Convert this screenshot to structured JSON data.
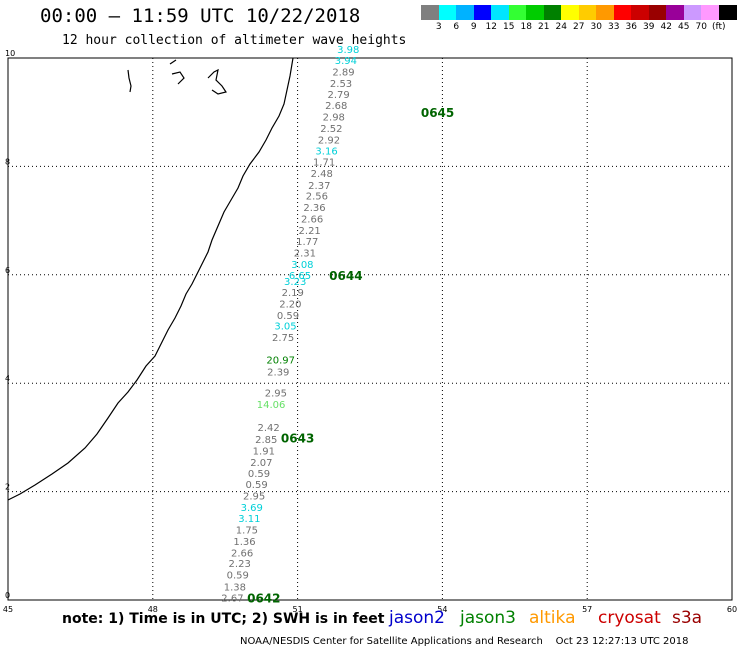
{
  "header": {
    "title": "00:00 – 11:59 UTC 10/22/2018",
    "subtitle": "12 hour collection of altimeter wave heights"
  },
  "colorbar": {
    "colors": [
      "#7f7f7f",
      "#00ffff",
      "#00b2ff",
      "#0000ff",
      "#00e5ff",
      "#33ff33",
      "#00cc00",
      "#008000",
      "#ffff00",
      "#ffcc00",
      "#ff9900",
      "#ff0000",
      "#cc0000",
      "#990000",
      "#990099",
      "#cc99ff",
      "#ff99ff",
      "#000000"
    ],
    "labels": [
      "3",
      "6",
      "9",
      "12",
      "15",
      "18",
      "21",
      "24",
      "27",
      "30",
      "33",
      "36",
      "39",
      "42",
      "45",
      "70",
      "(ft)"
    ]
  },
  "map": {
    "x_labels": [
      "45",
      "48",
      "51",
      "54",
      "57",
      "60"
    ],
    "y_labels": [
      "0",
      "2",
      "4",
      "6",
      "8",
      "10"
    ],
    "x_range": [
      45,
      60
    ],
    "y_range": [
      0,
      10
    ],
    "pass_labels": [
      {
        "label": "0642",
        "lon": 50.3,
        "lat": 0.05,
        "color": "#006400"
      },
      {
        "label": "0643",
        "lon": 51.0,
        "lat": 3.0,
        "color": "#006400"
      },
      {
        "label": "0644",
        "lon": 52.0,
        "lat": 6.0,
        "color": "#006400"
      },
      {
        "label": "0645",
        "lon": 53.9,
        "lat": 9.0,
        "color": "#006400"
      }
    ],
    "wave_heights": [
      {
        "v": "2.67",
        "lon": 49.65,
        "lat": 0.05,
        "c": "#707070"
      },
      {
        "v": "1.38",
        "lon": 49.7,
        "lat": 0.25,
        "c": "#707070"
      },
      {
        "v": "0.59",
        "lon": 49.76,
        "lat": 0.47,
        "c": "#707070"
      },
      {
        "v": "2.23",
        "lon": 49.8,
        "lat": 0.68,
        "c": "#707070"
      },
      {
        "v": "2.66",
        "lon": 49.85,
        "lat": 0.88,
        "c": "#707070"
      },
      {
        "v": "1.36",
        "lon": 49.9,
        "lat": 1.09,
        "c": "#707070"
      },
      {
        "v": "1.75",
        "lon": 49.95,
        "lat": 1.3,
        "c": "#707070"
      },
      {
        "v": "3.11",
        "lon": 50.0,
        "lat": 1.51,
        "c": "#00d0d8"
      },
      {
        "v": "3.69",
        "lon": 50.05,
        "lat": 1.72,
        "c": "#00d0d8"
      },
      {
        "v": "2.95",
        "lon": 50.1,
        "lat": 1.93,
        "c": "#707070"
      },
      {
        "v": "0.59",
        "lon": 50.15,
        "lat": 2.14,
        "c": "#707070"
      },
      {
        "v": "0.59",
        "lon": 50.2,
        "lat": 2.34,
        "c": "#707070"
      },
      {
        "v": "2.07",
        "lon": 50.25,
        "lat": 2.55,
        "c": "#707070"
      },
      {
        "v": "1.91",
        "lon": 50.3,
        "lat": 2.76,
        "c": "#707070"
      },
      {
        "v": "2.85",
        "lon": 50.35,
        "lat": 2.97,
        "c": "#707070"
      },
      {
        "v": "2.42",
        "lon": 50.4,
        "lat": 3.19,
        "c": "#707070"
      },
      {
        "v": "14.06",
        "lon": 50.45,
        "lat": 3.62,
        "c": "#66e066"
      },
      {
        "v": "2.95",
        "lon": 50.55,
        "lat": 3.83,
        "c": "#707070"
      },
      {
        "v": "2.39",
        "lon": 50.6,
        "lat": 4.22,
        "c": "#707070"
      },
      {
        "v": "20.97",
        "lon": 50.65,
        "lat": 4.44,
        "c": "#008000"
      },
      {
        "v": "2.75",
        "lon": 50.7,
        "lat": 4.85,
        "c": "#707070"
      },
      {
        "v": "3.05",
        "lon": 50.75,
        "lat": 5.06,
        "c": "#00d0d8"
      },
      {
        "v": "0.59",
        "lon": 50.8,
        "lat": 5.26,
        "c": "#707070"
      },
      {
        "v": "2.20",
        "lon": 50.85,
        "lat": 5.47,
        "c": "#707070"
      },
      {
        "v": "2.19",
        "lon": 50.9,
        "lat": 5.68,
        "c": "#707070"
      },
      {
        "v": "3.23",
        "lon": 50.95,
        "lat": 5.89,
        "c": "#00d0d8"
      },
      {
        "v": "6.65",
        "lon": 51.05,
        "lat": 6.0,
        "c": "#00d0d8"
      },
      {
        "v": "3.08",
        "lon": 51.1,
        "lat": 6.2,
        "c": "#00d0d8"
      },
      {
        "v": "2.31",
        "lon": 51.15,
        "lat": 6.41,
        "c": "#707070"
      },
      {
        "v": "1.77",
        "lon": 51.2,
        "lat": 6.62,
        "c": "#707070"
      },
      {
        "v": "2.21",
        "lon": 51.25,
        "lat": 6.83,
        "c": "#707070"
      },
      {
        "v": "2.66",
        "lon": 51.3,
        "lat": 7.04,
        "c": "#707070"
      },
      {
        "v": "2.36",
        "lon": 51.35,
        "lat": 7.25,
        "c": "#707070"
      },
      {
        "v": "2.56",
        "lon": 51.4,
        "lat": 7.46,
        "c": "#707070"
      },
      {
        "v": "2.37",
        "lon": 51.45,
        "lat": 7.66,
        "c": "#707070"
      },
      {
        "v": "2.48",
        "lon": 51.5,
        "lat": 7.88,
        "c": "#707070"
      },
      {
        "v": "1.71",
        "lon": 51.55,
        "lat": 8.09,
        "c": "#707070"
      },
      {
        "v": "3.16",
        "lon": 51.6,
        "lat": 8.29,
        "c": "#00d0d8"
      },
      {
        "v": "2.92",
        "lon": 51.65,
        "lat": 8.5,
        "c": "#707070"
      },
      {
        "v": "2.52",
        "lon": 51.7,
        "lat": 8.71,
        "c": "#707070"
      },
      {
        "v": "2.98",
        "lon": 51.75,
        "lat": 8.92,
        "c": "#707070"
      },
      {
        "v": "2.68",
        "lon": 51.8,
        "lat": 9.13,
        "c": "#707070"
      },
      {
        "v": "2.79",
        "lon": 51.85,
        "lat": 9.34,
        "c": "#707070"
      },
      {
        "v": "2.53",
        "lon": 51.9,
        "lat": 9.54,
        "c": "#707070"
      },
      {
        "v": "2.89",
        "lon": 51.95,
        "lat": 9.75,
        "c": "#707070"
      },
      {
        "v": "3.94",
        "lon": 52.0,
        "lat": 9.96,
        "c": "#00d0d8"
      },
      {
        "v": "3.98",
        "lon": 52.05,
        "lat": 10.17,
        "c": "#00d0d8"
      }
    ]
  },
  "footer": {
    "note": "note: 1) Time is in UTC; 2) SWH is in feet",
    "satellites": [
      {
        "name": "jason2",
        "color": "#0000cc"
      },
      {
        "name": "jason3",
        "color": "#008000"
      },
      {
        "name": "altika",
        "color": "#ff9900"
      },
      {
        "name": "cryosat",
        "color": "#cc0000"
      },
      {
        "name": "s3a",
        "color": "#990000"
      }
    ],
    "credit": "NOAA/NESDIS Center for Satellite Applications and Research    Oct 23 12:27:13 UTC 2018"
  }
}
